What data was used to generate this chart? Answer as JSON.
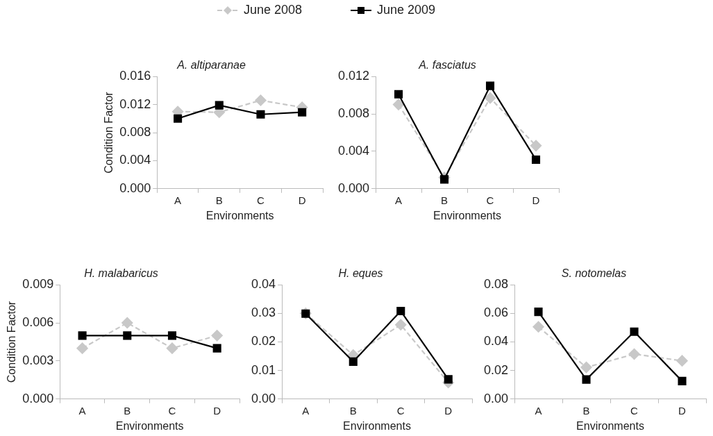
{
  "chart_data": [
    {
      "type": "line",
      "title": "A. altiparanae",
      "xlabel": "Environments",
      "ylabel": "Condition Factor",
      "categories": [
        "A",
        "B",
        "C",
        "D"
      ],
      "legend": "top",
      "ylim": [
        0,
        0.016
      ],
      "yticks": [
        {
          "value": 0,
          "label": "0.000"
        },
        {
          "value": 0.004,
          "label": "0.004"
        },
        {
          "value": 0.008,
          "label": "0.008"
        },
        {
          "value": 0.012,
          "label": "0.012"
        },
        {
          "value": 0.016,
          "label": "0.016"
        }
      ],
      "series": [
        {
          "name": "June 2008",
          "color": "#c8c8c8",
          "marker": "diamond",
          "line_style": "dashed",
          "values": [
            0.011,
            0.0109,
            0.0126,
            0.0116
          ]
        },
        {
          "name": "June 2009",
          "color": "#000000",
          "marker": "square",
          "line_style": "solid",
          "values": [
            0.01,
            0.0119,
            0.0106,
            0.0109
          ]
        }
      ]
    },
    {
      "type": "line",
      "title": "A. fasciatus",
      "xlabel": "Environments",
      "categories": [
        "A",
        "B",
        "C",
        "D"
      ],
      "ylim": [
        0,
        0.012
      ],
      "yticks": [
        {
          "value": 0,
          "label": "0.000"
        },
        {
          "value": 0.004,
          "label": "0.004"
        },
        {
          "value": 0.008,
          "label": "0.008"
        },
        {
          "value": 0.012,
          "label": "0.012"
        }
      ],
      "series": [
        {
          "color": "#c8c8c8",
          "marker": "diamond",
          "line_style": "dashed",
          "values": [
            0.009,
            0.0012,
            0.0097,
            0.0046
          ]
        },
        {
          "color": "#000000",
          "marker": "square",
          "line_style": "solid",
          "values": [
            0.0101,
            0.001,
            0.011,
            0.0031
          ]
        }
      ]
    },
    {
      "type": "line",
      "title": "H. malabaricus",
      "xlabel": "Environments",
      "ylabel": "Condition Factor",
      "categories": [
        "A",
        "B",
        "C",
        "D"
      ],
      "ylim": [
        0,
        0.009
      ],
      "yticks": [
        {
          "value": 0,
          "label": "0.000"
        },
        {
          "value": 0.003,
          "label": "0.003"
        },
        {
          "value": 0.006,
          "label": "0.006"
        },
        {
          "value": 0.009,
          "label": "0.009"
        }
      ],
      "series": [
        {
          "color": "#c8c8c8",
          "marker": "diamond",
          "line_style": "dashed",
          "values": [
            0.004,
            0.006,
            0.004,
            0.005
          ]
        },
        {
          "color": "#000000",
          "marker": "square",
          "line_style": "solid",
          "values": [
            0.005,
            0.005,
            0.005,
            0.004
          ]
        }
      ]
    },
    {
      "type": "line",
      "title": "H. eques",
      "xlabel": "Environments",
      "categories": [
        "A",
        "B",
        "C",
        "D"
      ],
      "ylim": [
        0,
        0.04
      ],
      "yticks": [
        {
          "value": 0,
          "label": "0.00"
        },
        {
          "value": 0.01,
          "label": "0.01"
        },
        {
          "value": 0.02,
          "label": "0.02"
        },
        {
          "value": 0.03,
          "label": "0.03"
        },
        {
          "value": 0.04,
          "label": "0.04"
        }
      ],
      "series": [
        {
          "color": "#c8c8c8",
          "marker": "diamond",
          "line_style": "dashed",
          "values": [
            0.03,
            0.0154,
            0.026,
            0.0058
          ]
        },
        {
          "color": "#000000",
          "marker": "square",
          "line_style": "solid",
          "values": [
            0.0299,
            0.0131,
            0.0308,
            0.0069
          ]
        }
      ]
    },
    {
      "type": "line",
      "title": "S. notomelas",
      "xlabel": "Environments",
      "categories": [
        "A",
        "B",
        "C",
        "D"
      ],
      "ylim": [
        0,
        0.08
      ],
      "yticks": [
        {
          "value": 0,
          "label": "0.00"
        },
        {
          "value": 0.02,
          "label": "0.02"
        },
        {
          "value": 0.04,
          "label": "0.04"
        },
        {
          "value": 0.06,
          "label": "0.06"
        },
        {
          "value": 0.08,
          "label": "0.08"
        }
      ],
      "series": [
        {
          "color": "#c8c8c8",
          "marker": "diamond",
          "line_style": "dashed",
          "values": [
            0.0506,
            0.0222,
            0.0315,
            0.0268
          ]
        },
        {
          "color": "#000000",
          "marker": "square",
          "line_style": "solid",
          "values": [
            0.0611,
            0.0137,
            0.0472,
            0.0126
          ]
        }
      ]
    }
  ]
}
